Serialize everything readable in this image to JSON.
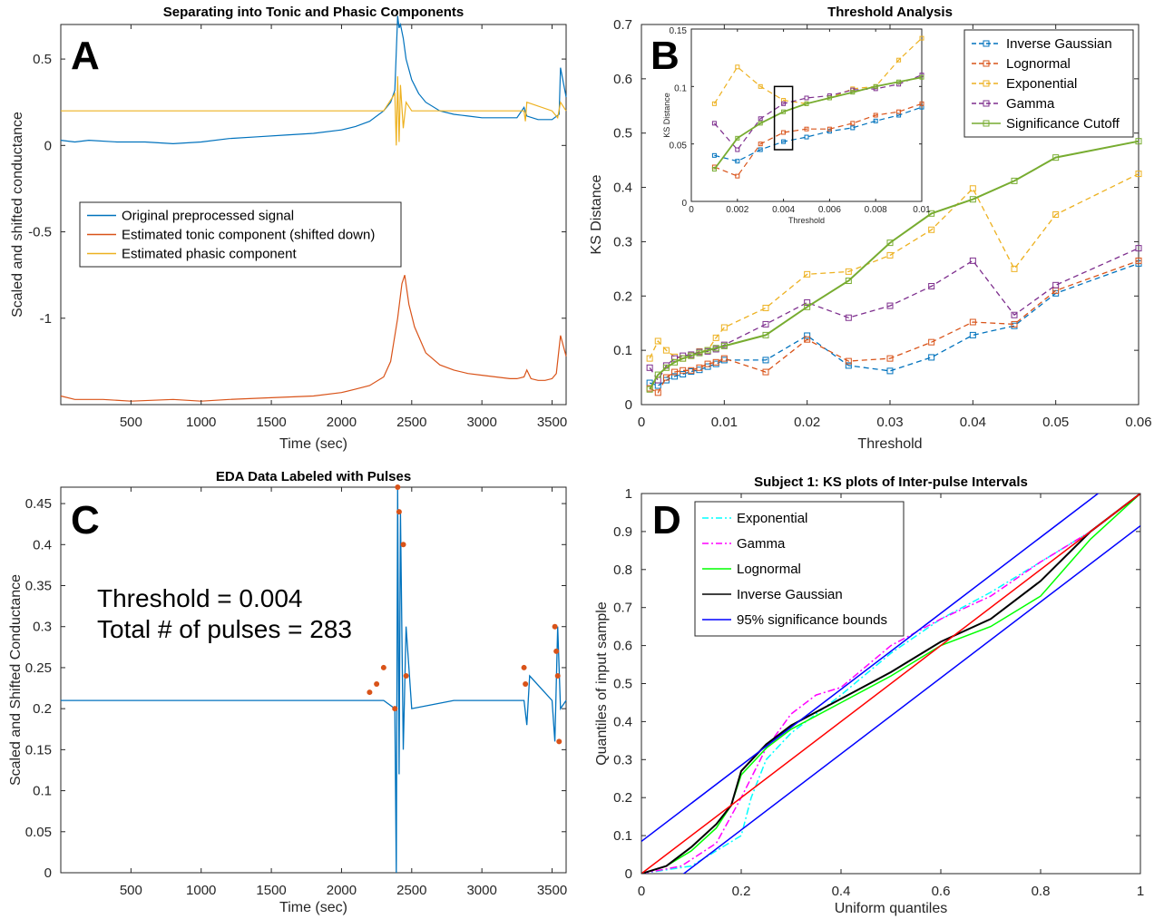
{
  "chart_data": [
    {
      "panel": "A",
      "type": "line",
      "title": "Separating into Tonic and Phasic Components",
      "xlabel": "Time (sec)",
      "ylabel": "Scaled and shifted conductance",
      "xlim": [
        0,
        3600
      ],
      "ylim": [
        -1.5,
        0.7
      ],
      "xticks": [
        500,
        1000,
        1500,
        2000,
        2500,
        3000,
        3500
      ],
      "yticks": [
        -1,
        -0.5,
        0,
        0.5
      ],
      "ytick_labels": [
        "-1",
        "-0.5",
        "0",
        "0.5"
      ],
      "legend_position": "center-left",
      "series": [
        {
          "name": "Original preprocessed signal",
          "color": "#0072BD",
          "x": [
            0,
            100,
            200,
            400,
            600,
            800,
            1000,
            1200,
            1400,
            1600,
            1800,
            2000,
            2100,
            2200,
            2300,
            2350,
            2380,
            2400,
            2410,
            2420,
            2440,
            2460,
            2500,
            2550,
            2600,
            2700,
            2800,
            2900,
            3000,
            3100,
            3200,
            3250,
            3300,
            3320,
            3400,
            3450,
            3500,
            3550,
            3560,
            3600
          ],
          "y": [
            0.03,
            0.02,
            0.03,
            0.02,
            0.02,
            0.01,
            0.02,
            0.04,
            0.05,
            0.06,
            0.07,
            0.09,
            0.11,
            0.14,
            0.2,
            0.25,
            0.32,
            0.75,
            0.68,
            0.7,
            0.62,
            0.5,
            0.38,
            0.3,
            0.25,
            0.2,
            0.18,
            0.17,
            0.16,
            0.16,
            0.16,
            0.16,
            0.22,
            0.17,
            0.15,
            0.15,
            0.15,
            0.18,
            0.45,
            0.28
          ]
        },
        {
          "name": "Estimated tonic component (shifted down)",
          "color": "#D95319",
          "x": [
            0,
            100,
            300,
            500,
            800,
            1000,
            1200,
            1500,
            1800,
            2000,
            2100,
            2200,
            2300,
            2350,
            2400,
            2430,
            2450,
            2480,
            2520,
            2600,
            2700,
            2800,
            2900,
            3000,
            3100,
            3200,
            3250,
            3300,
            3320,
            3350,
            3400,
            3450,
            3500,
            3530,
            3560,
            3600
          ],
          "y": [
            -1.45,
            -1.47,
            -1.47,
            -1.48,
            -1.47,
            -1.48,
            -1.47,
            -1.46,
            -1.45,
            -1.43,
            -1.41,
            -1.39,
            -1.34,
            -1.25,
            -1.0,
            -0.8,
            -0.75,
            -0.92,
            -1.05,
            -1.2,
            -1.27,
            -1.3,
            -1.32,
            -1.33,
            -1.34,
            -1.35,
            -1.35,
            -1.34,
            -1.3,
            -1.35,
            -1.36,
            -1.36,
            -1.35,
            -1.32,
            -1.1,
            -1.22
          ]
        },
        {
          "name": "Estimated phasic component",
          "color": "#EDB120",
          "x": [
            0,
            500,
            1000,
            1500,
            2000,
            2300,
            2380,
            2390,
            2400,
            2410,
            2420,
            2440,
            2460,
            2500,
            3000,
            3300,
            3310,
            3320,
            3500,
            3540,
            3560,
            3600
          ],
          "y": [
            0.2,
            0.2,
            0.2,
            0.2,
            0.2,
            0.2,
            0.3,
            0.0,
            0.4,
            0.02,
            0.35,
            0.1,
            0.25,
            0.2,
            0.2,
            0.2,
            0.14,
            0.25,
            0.2,
            0.16,
            0.25,
            0.2
          ]
        }
      ]
    },
    {
      "panel": "B",
      "type": "line",
      "title": "Threshold Analysis",
      "xlabel": "Threshold",
      "ylabel": "KS Distance",
      "xlim": [
        0,
        0.06
      ],
      "ylim": [
        0,
        0.7
      ],
      "xticks": [
        0,
        0.01,
        0.02,
        0.03,
        0.04,
        0.05,
        0.06
      ],
      "xtick_labels": [
        "0",
        "0.01",
        "0.02",
        "0.03",
        "0.04",
        "0.05",
        "0.06"
      ],
      "yticks": [
        0,
        0.1,
        0.2,
        0.3,
        0.4,
        0.5,
        0.6,
        0.7
      ],
      "ytick_labels": [
        "0",
        "0.1",
        "0.2",
        "0.3",
        "0.4",
        "0.5",
        "0.6",
        "0.7"
      ],
      "legend_position": "top-right",
      "x": [
        0.001,
        0.002,
        0.003,
        0.004,
        0.005,
        0.006,
        0.007,
        0.008,
        0.009,
        0.01,
        0.015,
        0.02,
        0.025,
        0.03,
        0.035,
        0.04,
        0.045,
        0.05,
        0.06
      ],
      "series": [
        {
          "name": "Inverse Gaussian",
          "color": "#0072BD",
          "dash": true,
          "y": [
            0.04,
            0.035,
            0.045,
            0.052,
            0.056,
            0.061,
            0.064,
            0.07,
            0.075,
            0.082,
            0.082,
            0.127,
            0.072,
            0.062,
            0.087,
            0.128,
            0.145,
            0.205,
            0.26
          ]
        },
        {
          "name": "Lognormal",
          "color": "#D95319",
          "dash": true,
          "y": [
            0.03,
            0.022,
            0.05,
            0.06,
            0.063,
            0.063,
            0.068,
            0.075,
            0.078,
            0.085,
            0.06,
            0.12,
            0.08,
            0.085,
            0.115,
            0.152,
            0.148,
            0.21,
            0.265
          ]
        },
        {
          "name": "Exponential",
          "color": "#EDB120",
          "dash": true,
          "y": [
            0.085,
            0.117,
            0.1,
            0.088,
            0.085,
            0.09,
            0.098,
            0.1,
            0.123,
            0.142,
            0.178,
            0.24,
            0.245,
            0.275,
            0.322,
            0.398,
            0.25,
            0.35,
            0.425
          ]
        },
        {
          "name": "Gamma",
          "color": "#7E2F8E",
          "dash": true,
          "y": [
            0.068,
            0.045,
            0.072,
            0.085,
            0.09,
            0.092,
            0.097,
            0.098,
            0.102,
            0.11,
            0.148,
            0.188,
            0.16,
            0.182,
            0.218,
            0.265,
            0.165,
            0.22,
            0.288
          ]
        },
        {
          "name": "Significance Cutoff",
          "color": "#77AC30",
          "dash": false,
          "y": [
            0.028,
            0.055,
            0.068,
            0.078,
            0.085,
            0.09,
            0.095,
            0.1,
            0.104,
            0.108,
            0.128,
            0.18,
            0.228,
            0.298,
            0.352,
            0.378,
            0.412,
            0.455,
            0.485
          ]
        }
      ],
      "inset": {
        "xlabel": "Threshold",
        "ylabel": "KS Distance",
        "xlim": [
          0,
          0.01
        ],
        "ylim": [
          0,
          0.15
        ],
        "xticks": [
          0,
          0.002,
          0.004,
          0.006,
          0.008,
          0.01
        ],
        "xtick_labels": [
          "0",
          "0.002",
          "0.004",
          "0.006",
          "0.008",
          "0.01"
        ],
        "yticks": [
          0,
          0.05,
          0.1,
          0.15
        ],
        "ytick_labels": [
          "0",
          "0.05",
          "0.1",
          "0.15"
        ],
        "highlight_x": 0.004
      }
    },
    {
      "panel": "C",
      "type": "line",
      "title": "EDA Data Labeled with Pulses",
      "xlabel": "Time (sec)",
      "ylabel": "Scaled and Shifted Conductance",
      "xlim": [
        0,
        3600
      ],
      "ylim": [
        0,
        0.47
      ],
      "xticks": [
        500,
        1000,
        1500,
        2000,
        2500,
        3000,
        3500
      ],
      "yticks": [
        0,
        0.05,
        0.1,
        0.15,
        0.2,
        0.25,
        0.3,
        0.35,
        0.4,
        0.45
      ],
      "ytick_labels": [
        "0",
        "0.05",
        "0.1",
        "0.15",
        "0.2",
        "0.25",
        "0.3",
        "0.35",
        "0.4",
        "0.45"
      ],
      "annotation": [
        "Threshold = 0.004",
        "Total # of pulses = 283"
      ],
      "series": [
        {
          "name": "signal",
          "color": "#0072BD",
          "x": [
            0,
            200,
            400,
            600,
            800,
            1000,
            1200,
            1400,
            1600,
            1800,
            2000,
            2200,
            2300,
            2380,
            2390,
            2400,
            2410,
            2420,
            2440,
            2460,
            2500,
            2800,
            3000,
            3300,
            3320,
            3340,
            3500,
            3520,
            3540,
            3560,
            3600
          ],
          "y": [
            0.21,
            0.21,
            0.21,
            0.21,
            0.21,
            0.21,
            0.21,
            0.21,
            0.21,
            0.21,
            0.21,
            0.21,
            0.21,
            0.2,
            0.0,
            0.47,
            0.12,
            0.44,
            0.15,
            0.3,
            0.2,
            0.21,
            0.21,
            0.21,
            0.18,
            0.24,
            0.21,
            0.16,
            0.3,
            0.2,
            0.21
          ]
        },
        {
          "name": "pulses",
          "color": "#D95319",
          "marker": "*",
          "x": [
            2380,
            2400,
            2410,
            2440,
            2460,
            3300,
            3310,
            3520,
            3530,
            3540,
            3550,
            2200,
            2250,
            2300
          ],
          "y": [
            0.2,
            0.47,
            0.44,
            0.4,
            0.24,
            0.25,
            0.23,
            0.3,
            0.27,
            0.24,
            0.16,
            0.22,
            0.23,
            0.25
          ]
        }
      ]
    },
    {
      "panel": "D",
      "type": "line",
      "title": "Subject 1: KS plots of Inter-pulse Intervals",
      "xlabel": "Uniform quantiles",
      "ylabel": "Quantiles of input sample",
      "xlim": [
        0,
        1
      ],
      "ylim": [
        0,
        1
      ],
      "xticks": [
        0,
        0.2,
        0.4,
        0.6,
        0.8,
        1
      ],
      "xtick_labels": [
        "0",
        "0.2",
        "0.4",
        "0.6",
        "0.8",
        "1"
      ],
      "yticks": [
        0,
        0.1,
        0.2,
        0.3,
        0.4,
        0.5,
        0.6,
        0.7,
        0.8,
        0.9,
        1
      ],
      "ytick_labels": [
        "0",
        "0.1",
        "0.2",
        "0.3",
        "0.4",
        "0.5",
        "0.6",
        "0.7",
        "0.8",
        "0.9",
        "1"
      ],
      "legend_position": "top-left",
      "series": [
        {
          "name": "Exponential",
          "color": "#00FFFF",
          "dash": "dashdot",
          "x": [
            0,
            0.1,
            0.15,
            0.2,
            0.22,
            0.25,
            0.3,
            0.4,
            0.5,
            0.6,
            0.7,
            0.8,
            0.9,
            1.0
          ],
          "y": [
            0,
            0.02,
            0.06,
            0.1,
            0.2,
            0.3,
            0.37,
            0.47,
            0.58,
            0.67,
            0.74,
            0.82,
            0.9,
            1.0
          ]
        },
        {
          "name": "Gamma",
          "color": "#FF00FF",
          "dash": "dashdot",
          "x": [
            0,
            0.08,
            0.15,
            0.2,
            0.25,
            0.3,
            0.35,
            0.4,
            0.5,
            0.6,
            0.7,
            0.8,
            0.9,
            1.0
          ],
          "y": [
            0,
            0.02,
            0.08,
            0.2,
            0.33,
            0.42,
            0.47,
            0.49,
            0.6,
            0.67,
            0.73,
            0.82,
            0.9,
            1.0
          ]
        },
        {
          "name": "Lognormal",
          "color": "#00FF00",
          "dash": "solid",
          "x": [
            0,
            0.05,
            0.1,
            0.15,
            0.18,
            0.2,
            0.25,
            0.3,
            0.4,
            0.5,
            0.6,
            0.7,
            0.8,
            0.9,
            1.0
          ],
          "y": [
            0,
            0.02,
            0.06,
            0.12,
            0.18,
            0.26,
            0.33,
            0.38,
            0.45,
            0.52,
            0.6,
            0.65,
            0.73,
            0.88,
            1.0
          ]
        },
        {
          "name": "Inverse Gaussian",
          "color": "#000000",
          "dash": "solid",
          "x": [
            0,
            0.05,
            0.1,
            0.15,
            0.18,
            0.2,
            0.25,
            0.3,
            0.4,
            0.5,
            0.6,
            0.7,
            0.8,
            0.9,
            1.0
          ],
          "y": [
            0,
            0.02,
            0.07,
            0.13,
            0.18,
            0.27,
            0.34,
            0.39,
            0.46,
            0.53,
            0.61,
            0.67,
            0.77,
            0.9,
            1.0
          ]
        },
        {
          "name": "95% significance bounds",
          "color": "#0000FF",
          "dash": "solid",
          "x": [
            0,
            1
          ],
          "y": [
            0.085,
            1.085
          ]
        },
        {
          "name": "",
          "color": "#0000FF",
          "dash": "solid",
          "x": [
            0,
            1
          ],
          "y": [
            -0.085,
            0.915
          ]
        },
        {
          "name": "",
          "color": "#FF0000",
          "dash": "solid",
          "x": [
            0,
            1
          ],
          "y": [
            0,
            1
          ]
        }
      ]
    }
  ],
  "panel_letters": [
    "A",
    "B",
    "C",
    "D"
  ],
  "colors": {
    "axis": "#262626",
    "background": "#ffffff"
  }
}
